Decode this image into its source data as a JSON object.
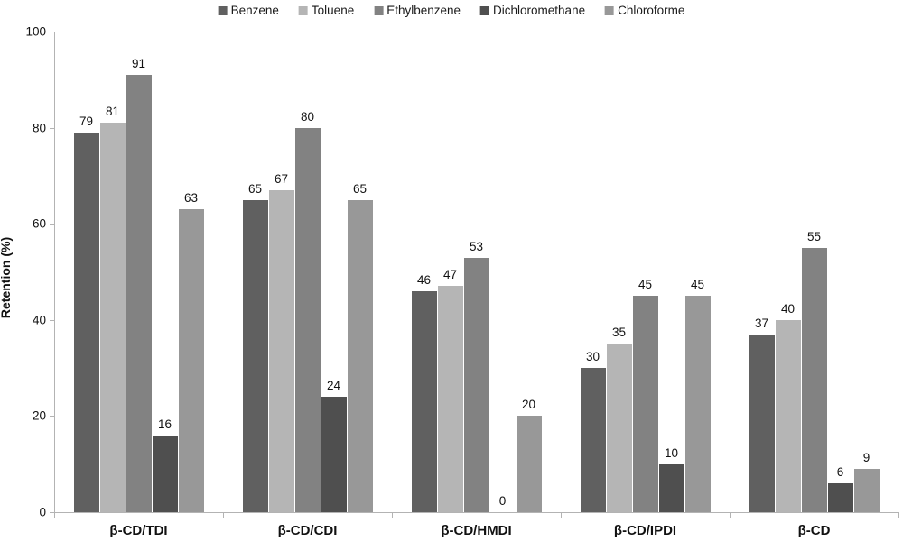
{
  "chart_data": {
    "type": "bar",
    "title": "",
    "xlabel": "",
    "ylabel": "Retention (%)",
    "ylim": [
      0,
      100
    ],
    "yticks": [
      0,
      20,
      40,
      60,
      80,
      100
    ],
    "grid": false,
    "legend_position": "top",
    "categories": [
      "β-CD/TDI",
      "β-CD/CDI",
      "β-CD/HMDI",
      "β-CD/IPDI",
      "β-CD"
    ],
    "series": [
      {
        "name": "Benzene",
        "color": "#606060",
        "values": [
          79,
          65,
          46,
          30,
          37
        ]
      },
      {
        "name": "Toluene",
        "color": "#b5b5b5",
        "values": [
          81,
          67,
          47,
          35,
          40
        ]
      },
      {
        "name": "Ethylbenzene",
        "color": "#828282",
        "values": [
          91,
          80,
          53,
          45,
          55
        ]
      },
      {
        "name": "Dichloromethane",
        "color": "#4f4f4f",
        "values": [
          16,
          24,
          0,
          10,
          6
        ]
      },
      {
        "name": "Chloroforme",
        "color": "#989898",
        "values": [
          63,
          65,
          20,
          45,
          9
        ]
      }
    ],
    "axis_color": "#b3b3b3",
    "text_color": "#111111"
  }
}
